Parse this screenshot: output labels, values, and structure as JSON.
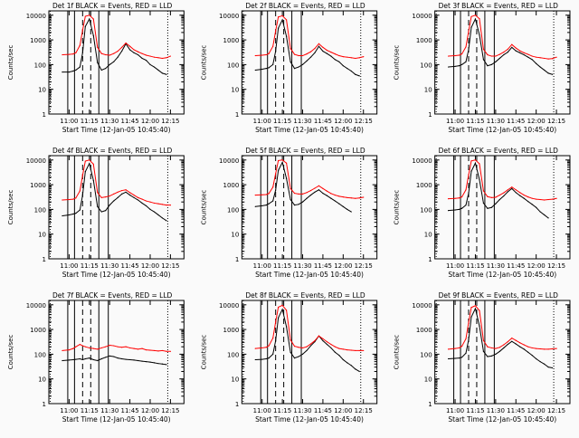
{
  "page": {
    "background": "#fafafa",
    "axis_color": "#000000"
  },
  "panel_common": {
    "title_suffix": "BLACK = Events, RED = LLD",
    "xlabel": "Start Time (12-Jan-05 10:45:40)",
    "ylabel": "Counts/sec",
    "x_ticks": [
      "11:00",
      "11:15",
      "11:30",
      "11:45",
      "12:00",
      "12:15"
    ],
    "y_ticks": [
      "1",
      "10",
      "100",
      "1000",
      "10000"
    ],
    "series_colors": {
      "events": "#000000",
      "lld": "#ff0000"
    },
    "window_markers_solid": [
      "10:59",
      "11:04",
      "11:22",
      "11:29"
    ],
    "window_markers_dashed": [
      "11:10",
      "11:16"
    ],
    "window_markers_dotted": [
      "10:46",
      "12:13"
    ]
  },
  "chart_data": [
    {
      "type": "line",
      "title": "Det 1f BLACK = Events, RED = LLD",
      "xlabel": "Start Time (12-Jan-05 10:45:40)",
      "ylabel": "Counts/sec",
      "x": [
        "10:55",
        "11:00",
        "11:03",
        "11:05",
        "11:08",
        "11:10",
        "11:12",
        "11:15",
        "11:18",
        "11:21",
        "11:24",
        "11:27",
        "11:30",
        "11:33",
        "11:36",
        "11:39",
        "11:42",
        "11:45",
        "11:48",
        "11:51",
        "11:54",
        "11:57",
        "12:00",
        "12:03",
        "12:06",
        "12:09",
        "12:12",
        "12:15"
      ],
      "series": [
        {
          "name": "Events",
          "values": [
            50,
            50,
            55,
            60,
            80,
            300,
            3500,
            7000,
            1500,
            120,
            60,
            70,
            100,
            130,
            200,
            350,
            700,
            400,
            300,
            250,
            180,
            150,
            100,
            80,
            60,
            45,
            40,
            null
          ]
        },
        {
          "name": "LLD",
          "values": [
            250,
            260,
            270,
            300,
            600,
            2500,
            9000,
            10000,
            7000,
            500,
            280,
            250,
            240,
            280,
            350,
            500,
            750,
            550,
            400,
            330,
            280,
            240,
            220,
            200,
            190,
            180,
            190,
            220
          ]
        }
      ],
      "ylim": [
        1,
        15000
      ],
      "yscale": "log",
      "xlim": [
        "10:45",
        "12:25"
      ]
    },
    {
      "type": "line",
      "title": "Det 2f BLACK = Events, RED = LLD",
      "xlabel": "Start Time (12-Jan-05 10:45:40)",
      "ylabel": "Counts/sec",
      "x": [
        "10:55",
        "11:00",
        "11:03",
        "11:05",
        "11:08",
        "11:10",
        "11:12",
        "11:15",
        "11:18",
        "11:21",
        "11:24",
        "11:27",
        "11:30",
        "11:33",
        "11:36",
        "11:39",
        "11:42",
        "11:45",
        "11:48",
        "11:51",
        "11:54",
        "11:57",
        "12:00",
        "12:03",
        "12:06",
        "12:09",
        "12:12",
        "12:15"
      ],
      "series": [
        {
          "name": "Events",
          "values": [
            60,
            65,
            70,
            75,
            100,
            350,
            3000,
            6500,
            1400,
            130,
            70,
            80,
            100,
            140,
            200,
            300,
            550,
            350,
            280,
            220,
            160,
            130,
            90,
            70,
            55,
            40,
            35,
            null
          ]
        },
        {
          "name": "LLD",
          "values": [
            230,
            240,
            250,
            280,
            550,
            2300,
            8500,
            9500,
            6500,
            450,
            260,
            230,
            230,
            270,
            330,
            450,
            700,
            500,
            380,
            320,
            270,
            230,
            210,
            200,
            190,
            180,
            190,
            210
          ]
        }
      ],
      "ylim": [
        1,
        15000
      ],
      "yscale": "log",
      "xlim": [
        "10:45",
        "12:25"
      ]
    },
    {
      "type": "line",
      "title": "Det 3f BLACK = Events, RED = LLD",
      "xlabel": "Start Time (12-Jan-05 10:45:40)",
      "ylabel": "Counts/sec",
      "x": [
        "10:55",
        "11:00",
        "11:03",
        "11:05",
        "11:08",
        "11:10",
        "11:12",
        "11:15",
        "11:18",
        "11:21",
        "11:24",
        "11:27",
        "11:30",
        "11:33",
        "11:36",
        "11:39",
        "11:42",
        "11:45",
        "11:48",
        "11:51",
        "11:54",
        "11:57",
        "12:00",
        "12:03",
        "12:06",
        "12:09",
        "12:12",
        "12:15"
      ],
      "series": [
        {
          "name": "Events",
          "values": [
            80,
            85,
            90,
            100,
            130,
            400,
            3200,
            7000,
            1600,
            160,
            90,
            100,
            130,
            180,
            250,
            320,
            500,
            360,
            300,
            250,
            200,
            160,
            110,
            80,
            60,
            45,
            40,
            null
          ]
        },
        {
          "name": "LLD",
          "values": [
            220,
            230,
            240,
            270,
            520,
            2200,
            8800,
            10000,
            7200,
            420,
            250,
            220,
            220,
            260,
            320,
            420,
            650,
            470,
            360,
            300,
            260,
            220,
            200,
            190,
            180,
            170,
            175,
            200
          ]
        }
      ],
      "ylim": [
        1,
        15000
      ],
      "yscale": "log",
      "xlim": [
        "10:45",
        "12:25"
      ]
    },
    {
      "type": "line",
      "title": "Det 4f BLACK = Events, RED = LLD",
      "xlabel": "Start Time (12-Jan-05 10:45:40)",
      "ylabel": "Counts/sec",
      "x": [
        "10:55",
        "11:00",
        "11:03",
        "11:05",
        "11:08",
        "11:10",
        "11:12",
        "11:15",
        "11:18",
        "11:21",
        "11:24",
        "11:27",
        "11:30",
        "11:33",
        "11:36",
        "11:39",
        "11:42",
        "11:45",
        "11:48",
        "11:51",
        "11:54",
        "11:57",
        "12:00",
        "12:03",
        "12:06",
        "12:09",
        "12:12",
        "12:15"
      ],
      "series": [
        {
          "name": "Events",
          "values": [
            55,
            60,
            65,
            70,
            95,
            380,
            3400,
            7200,
            1500,
            130,
            80,
            90,
            150,
            220,
            300,
            420,
            500,
            380,
            300,
            240,
            180,
            140,
            100,
            80,
            60,
            45,
            35,
            null
          ]
        },
        {
          "name": "LLD",
          "values": [
            240,
            250,
            260,
            290,
            560,
            2400,
            9000,
            10000,
            6800,
            480,
            300,
            320,
            350,
            420,
            500,
            580,
            620,
            480,
            380,
            300,
            260,
            220,
            200,
            180,
            170,
            160,
            150,
            150
          ]
        }
      ],
      "ylim": [
        1,
        15000
      ],
      "yscale": "log",
      "xlim": [
        "10:45",
        "12:25"
      ]
    },
    {
      "type": "line",
      "title": "Det 5f BLACK = Events, RED = LLD",
      "xlabel": "Start Time (12-Jan-05 10:45:40)",
      "ylabel": "Counts/sec",
      "x": [
        "10:55",
        "11:00",
        "11:03",
        "11:05",
        "11:08",
        "11:10",
        "11:12",
        "11:15",
        "11:18",
        "11:21",
        "11:24",
        "11:27",
        "11:30",
        "11:33",
        "11:36",
        "11:39",
        "11:42",
        "11:45",
        "11:48",
        "11:51",
        "11:54",
        "11:57",
        "12:00",
        "12:03",
        "12:06",
        "12:09",
        "12:12",
        "12:15"
      ],
      "series": [
        {
          "name": "Events",
          "values": [
            130,
            140,
            150,
            170,
            220,
            600,
            3800,
            8000,
            1800,
            250,
            150,
            160,
            200,
            280,
            380,
            500,
            620,
            450,
            360,
            280,
            220,
            170,
            130,
            100,
            80,
            null,
            null,
            null
          ]
        },
        {
          "name": "LLD",
          "values": [
            380,
            390,
            400,
            440,
            800,
            2800,
            9500,
            10000,
            7500,
            700,
            450,
            420,
            420,
            480,
            580,
            720,
            900,
            700,
            550,
            440,
            380,
            340,
            320,
            300,
            290,
            280,
            290,
            310
          ]
        }
      ],
      "ylim": [
        1,
        15000
      ],
      "yscale": "log",
      "xlim": [
        "10:45",
        "12:25"
      ]
    },
    {
      "type": "line",
      "title": "Det 6f BLACK = Events, RED = LLD",
      "xlabel": "Start Time (12-Jan-05 10:45:40)",
      "ylabel": "Counts/sec",
      "x": [
        "10:55",
        "11:00",
        "11:03",
        "11:05",
        "11:08",
        "11:10",
        "11:12",
        "11:15",
        "11:18",
        "11:21",
        "11:24",
        "11:27",
        "11:30",
        "11:33",
        "11:36",
        "11:39",
        "11:42",
        "11:45",
        "11:48",
        "11:51",
        "11:54",
        "11:57",
        "12:00",
        "12:03",
        "12:06",
        "12:09",
        "12:12",
        "12:15"
      ],
      "series": [
        {
          "name": "Events",
          "values": [
            90,
            95,
            100,
            110,
            150,
            450,
            3500,
            7500,
            1600,
            180,
            110,
            120,
            170,
            250,
            350,
            520,
            700,
            480,
            360,
            280,
            210,
            160,
            120,
            80,
            60,
            45,
            null,
            null
          ]
        },
        {
          "name": "LLD",
          "values": [
            270,
            280,
            290,
            320,
            620,
            2500,
            9200,
            10000,
            7000,
            560,
            330,
            300,
            310,
            380,
            470,
            620,
            800,
            620,
            480,
            380,
            320,
            280,
            260,
            250,
            240,
            250,
            260,
            280
          ]
        }
      ],
      "ylim": [
        1,
        15000
      ],
      "yscale": "log",
      "xlim": [
        "10:45",
        "12:25"
      ]
    },
    {
      "type": "line",
      "title": "Det 7f BLACK = Events, RED = LLD",
      "xlabel": "Start Time (12-Jan-05 10:45:40)",
      "ylabel": "Counts/sec",
      "x": [
        "10:55",
        "11:00",
        "11:03",
        "11:05",
        "11:08",
        "11:10",
        "11:12",
        "11:15",
        "11:18",
        "11:21",
        "11:24",
        "11:27",
        "11:30",
        "11:33",
        "11:36",
        "11:39",
        "11:42",
        "11:45",
        "11:48",
        "11:51",
        "11:54",
        "11:57",
        "12:00",
        "12:03",
        "12:06",
        "12:09",
        "12:12",
        "12:15"
      ],
      "series": [
        {
          "name": "Events",
          "values": [
            55,
            58,
            60,
            62,
            65,
            60,
            65,
            70,
            60,
            55,
            65,
            75,
            85,
            80,
            70,
            65,
            62,
            60,
            58,
            55,
            52,
            50,
            48,
            45,
            42,
            40,
            38,
            null
          ]
        },
        {
          "name": "LLD",
          "values": [
            140,
            150,
            170,
            200,
            250,
            220,
            200,
            180,
            170,
            160,
            180,
            200,
            230,
            220,
            200,
            190,
            200,
            180,
            170,
            160,
            170,
            150,
            145,
            140,
            135,
            140,
            130,
            130
          ]
        }
      ],
      "ylim": [
        1,
        15000
      ],
      "yscale": "log",
      "xlim": [
        "10:45",
        "12:25"
      ]
    },
    {
      "type": "line",
      "title": "Det 8f BLACK = Events, RED = LLD",
      "xlabel": "Start Time (12-Jan-05 10:45:40)",
      "ylabel": "Counts/sec",
      "x": [
        "10:55",
        "11:00",
        "11:03",
        "11:05",
        "11:08",
        "11:10",
        "11:12",
        "11:15",
        "11:18",
        "11:21",
        "11:24",
        "11:27",
        "11:30",
        "11:33",
        "11:36",
        "11:39",
        "11:42",
        "11:45",
        "11:48",
        "11:51",
        "11:54",
        "11:57",
        "12:00",
        "12:03",
        "12:06",
        "12:09",
        "12:12",
        "12:15"
      ],
      "series": [
        {
          "name": "Events",
          "values": [
            60,
            62,
            65,
            70,
            100,
            350,
            3000,
            6500,
            1300,
            120,
            70,
            80,
            100,
            140,
            220,
            320,
            550,
            350,
            250,
            180,
            120,
            90,
            60,
            45,
            35,
            25,
            20,
            null
          ]
        },
        {
          "name": "LLD",
          "values": [
            170,
            180,
            190,
            220,
            450,
            2000,
            8000,
            9500,
            6000,
            380,
            210,
            190,
            180,
            200,
            260,
            350,
            550,
            420,
            320,
            250,
            200,
            170,
            160,
            150,
            145,
            140,
            140,
            140
          ]
        }
      ],
      "ylim": [
        1,
        15000
      ],
      "yscale": "log",
      "xlim": [
        "10:45",
        "12:25"
      ]
    },
    {
      "type": "line",
      "title": "Det 9f BLACK = Events, RED = LLD",
      "xlabel": "Start Time (12-Jan-05 10:45:40)",
      "ylabel": "Counts/sec",
      "x": [
        "10:55",
        "11:00",
        "11:03",
        "11:05",
        "11:08",
        "11:10",
        "11:12",
        "11:15",
        "11:18",
        "11:21",
        "11:24",
        "11:27",
        "11:30",
        "11:33",
        "11:36",
        "11:39",
        "11:42",
        "11:45",
        "11:48",
        "11:51",
        "11:54",
        "11:57",
        "12:00",
        "12:03",
        "12:06",
        "12:09",
        "12:12",
        "12:15"
      ],
      "series": [
        {
          "name": "Events",
          "values": [
            65,
            68,
            70,
            75,
            110,
            380,
            3200,
            7000,
            1400,
            130,
            80,
            85,
            100,
            130,
            180,
            250,
            330,
            260,
            200,
            160,
            120,
            90,
            65,
            50,
            40,
            30,
            28,
            null
          ]
        },
        {
          "name": "LLD",
          "values": [
            160,
            170,
            180,
            210,
            420,
            1900,
            7800,
            9200,
            5800,
            360,
            200,
            180,
            170,
            190,
            240,
            320,
            450,
            360,
            290,
            240,
            200,
            180,
            170,
            165,
            160,
            160,
            165,
            170
          ]
        }
      ],
      "ylim": [
        1,
        15000
      ],
      "yscale": "log",
      "xlim": [
        "10:45",
        "12:25"
      ]
    }
  ]
}
